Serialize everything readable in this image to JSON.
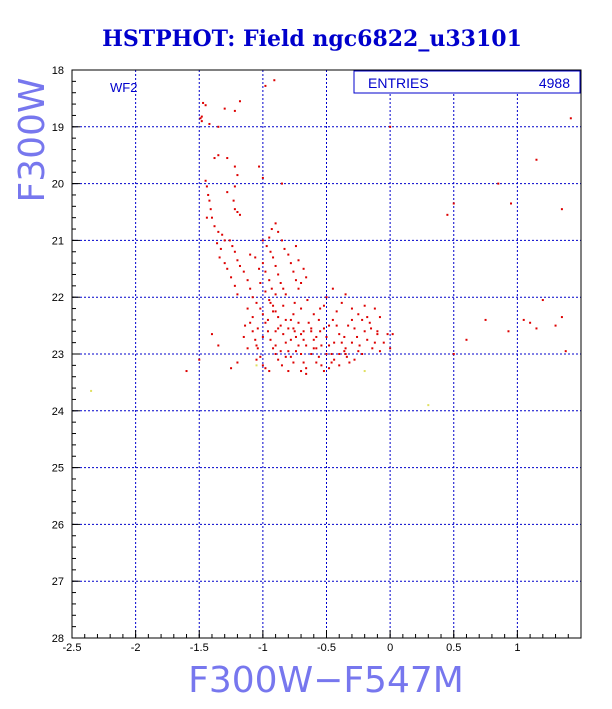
{
  "chart_data": {
    "type": "scatter",
    "title": "HSTPHOT: Field ngc6822_u33101",
    "xlabel": "F300W−F547M",
    "ylabel": "F300W",
    "xlim": [
      -2.5,
      1.5
    ],
    "ylim": [
      28,
      18
    ],
    "y_inverted": true,
    "xticks": [
      -2.5,
      -2,
      -1.5,
      -1,
      -0.5,
      0,
      0.5,
      1
    ],
    "xtick_labels": [
      "-2.5",
      "-2",
      "-1.5",
      "-1",
      "-0.5",
      "0",
      "0.5",
      "1"
    ],
    "yticks": [
      18,
      19,
      20,
      21,
      22,
      23,
      24,
      25,
      26,
      27,
      28
    ],
    "ytick_labels": [
      "18",
      "19",
      "20",
      "21",
      "22",
      "23",
      "24",
      "25",
      "26",
      "27",
      "28"
    ],
    "grid": true,
    "panel_label": "WF2",
    "stats": {
      "label": "ENTRIES",
      "value": "4988"
    },
    "point_color": "#dd0000",
    "faint_color": "#e0e060",
    "grid_color": "#0000cc",
    "frame_color": "#000000",
    "points": [
      [
        -0.91,
        18.18
      ],
      [
        -0.98,
        18.28
      ],
      [
        -1.47,
        18.58
      ],
      [
        -1.45,
        18.62
      ],
      [
        -1.48,
        18.82
      ],
      [
        -1.49,
        18.85
      ],
      [
        -1.42,
        18.95
      ],
      [
        -1.3,
        18.68
      ],
      [
        -1.22,
        18.72
      ],
      [
        -1.18,
        18.55
      ],
      [
        -1.35,
        19.0
      ],
      [
        -1.48,
        18.9
      ],
      [
        -1.38,
        19.55
      ],
      [
        -1.35,
        19.5
      ],
      [
        -1.28,
        19.55
      ],
      [
        -1.22,
        19.7
      ],
      [
        -1.2,
        19.85
      ],
      [
        -1.22,
        20.05
      ],
      [
        -1.28,
        20.15
      ],
      [
        -1.45,
        19.95
      ],
      [
        -1.44,
        20.05
      ],
      [
        -1.43,
        20.2
      ],
      [
        -1.42,
        20.3
      ],
      [
        -1.41,
        20.45
      ],
      [
        -1.4,
        20.6
      ],
      [
        -1.44,
        20.6
      ],
      [
        -1.2,
        20.5
      ],
      [
        -1.18,
        20.55
      ],
      [
        -1.03,
        19.7
      ],
      [
        -1.0,
        19.9
      ],
      [
        -1.23,
        20.3
      ],
      [
        -1.22,
        20.45
      ],
      [
        -0.85,
        20.0
      ],
      [
        -1.38,
        20.75
      ],
      [
        -1.35,
        20.85
      ],
      [
        -1.32,
        20.9
      ],
      [
        -1.3,
        21.0
      ],
      [
        -1.36,
        21.05
      ],
      [
        -1.33,
        21.15
      ],
      [
        -1.34,
        21.3
      ],
      [
        -1.3,
        21.4
      ],
      [
        -1.28,
        21.5
      ],
      [
        -1.25,
        21.65
      ],
      [
        -1.22,
        21.8
      ],
      [
        -1.2,
        21.95
      ],
      [
        -1.26,
        21.0
      ],
      [
        -1.24,
        21.1
      ],
      [
        -1.22,
        21.2
      ],
      [
        -1.2,
        21.35
      ],
      [
        -1.18,
        21.45
      ],
      [
        -1.15,
        21.55
      ],
      [
        -1.12,
        21.7
      ],
      [
        -1.1,
        21.85
      ],
      [
        -1.08,
        22.0
      ],
      [
        -1.05,
        22.1
      ],
      [
        -1.02,
        22.2
      ],
      [
        -1.0,
        22.3
      ],
      [
        -1.1,
        21.25
      ],
      [
        -1.06,
        21.3
      ],
      [
        -1.03,
        21.5
      ],
      [
        -1.0,
        21.4
      ],
      [
        -0.98,
        21.55
      ],
      [
        -0.95,
        21.7
      ],
      [
        -0.93,
        21.85
      ],
      [
        -0.9,
        21.95
      ],
      [
        -0.95,
        22.05
      ],
      [
        -0.92,
        22.15
      ],
      [
        -0.9,
        22.25
      ],
      [
        -0.88,
        22.35
      ],
      [
        -1.0,
        21.0
      ],
      [
        -0.97,
        21.1
      ],
      [
        -0.94,
        21.2
      ],
      [
        -0.92,
        21.3
      ],
      [
        -0.9,
        21.45
      ],
      [
        -0.88,
        21.6
      ],
      [
        -0.86,
        21.75
      ],
      [
        -0.84,
        21.85
      ],
      [
        -0.82,
        21.95
      ],
      [
        -0.95,
        20.95
      ],
      [
        -0.93,
        20.8
      ],
      [
        -0.9,
        20.7
      ],
      [
        -0.88,
        20.85
      ],
      [
        -0.85,
        21.0
      ],
      [
        -0.83,
        21.15
      ],
      [
        -0.8,
        21.25
      ],
      [
        -0.78,
        21.4
      ],
      [
        -0.76,
        21.55
      ],
      [
        -0.74,
        21.7
      ],
      [
        -0.72,
        21.85
      ],
      [
        -0.7,
        21.75
      ],
      [
        -0.72,
        21.35
      ],
      [
        -0.74,
        21.1
      ],
      [
        -0.68,
        21.5
      ],
      [
        -0.66,
        21.65
      ],
      [
        -1.1,
        22.45
      ],
      [
        -1.08,
        22.6
      ],
      [
        -1.06,
        22.75
      ],
      [
        -1.04,
        22.9
      ],
      [
        -1.02,
        23.05
      ],
      [
        -1.0,
        23.2
      ],
      [
        -0.98,
        23.25
      ],
      [
        -1.12,
        22.9
      ],
      [
        -1.15,
        22.7
      ],
      [
        -1.14,
        22.5
      ],
      [
        -0.98,
        22.45
      ],
      [
        -0.96,
        22.6
      ],
      [
        -0.94,
        22.75
      ],
      [
        -0.92,
        22.9
      ],
      [
        -0.9,
        23.0
      ],
      [
        -0.88,
        23.1
      ],
      [
        -0.86,
        22.5
      ],
      [
        -0.84,
        22.65
      ],
      [
        -0.82,
        22.8
      ],
      [
        -0.8,
        22.95
      ],
      [
        -0.78,
        23.05
      ],
      [
        -0.76,
        23.15
      ],
      [
        -0.78,
        22.4
      ],
      [
        -0.76,
        22.55
      ],
      [
        -0.74,
        22.7
      ],
      [
        -0.72,
        22.85
      ],
      [
        -0.7,
        23.0
      ],
      [
        -0.68,
        23.15
      ],
      [
        -0.66,
        23.25
      ],
      [
        -0.64,
        22.45
      ],
      [
        -0.62,
        22.6
      ],
      [
        -0.6,
        22.75
      ],
      [
        -0.58,
        22.9
      ],
      [
        -0.56,
        23.05
      ],
      [
        -0.54,
        23.2
      ],
      [
        -0.52,
        23.3
      ],
      [
        -0.6,
        22.3
      ],
      [
        -0.56,
        22.4
      ],
      [
        -0.52,
        22.55
      ],
      [
        -0.5,
        22.7
      ],
      [
        -0.48,
        22.85
      ],
      [
        -0.46,
        23.0
      ],
      [
        -0.44,
        23.1
      ],
      [
        -0.42,
        22.5
      ],
      [
        -0.4,
        22.65
      ],
      [
        -0.38,
        22.8
      ],
      [
        -0.36,
        22.95
      ],
      [
        -0.34,
        23.05
      ],
      [
        -0.32,
        23.15
      ],
      [
        -0.3,
        22.4
      ],
      [
        -0.28,
        22.55
      ],
      [
        -0.26,
        22.7
      ],
      [
        -0.24,
        22.85
      ],
      [
        -0.22,
        23.0
      ],
      [
        -0.2,
        22.6
      ],
      [
        -0.18,
        22.75
      ],
      [
        -0.16,
        22.45
      ],
      [
        -0.14,
        22.9
      ],
      [
        -0.12,
        22.2
      ],
      [
        -0.1,
        22.6
      ],
      [
        -0.08,
        22.95
      ],
      [
        -0.05,
        22.8
      ],
      [
        -0.02,
        22.65
      ],
      [
        -0.38,
        22.1
      ],
      [
        -0.35,
        21.95
      ],
      [
        -0.3,
        22.2
      ],
      [
        -0.25,
        22.3
      ],
      [
        -0.2,
        22.15
      ],
      [
        -0.45,
        21.85
      ],
      [
        -0.5,
        22.0
      ],
      [
        -0.55,
        22.2
      ],
      [
        -0.65,
        22.05
      ],
      [
        -0.7,
        22.2
      ],
      [
        -0.75,
        22.1
      ],
      [
        -0.62,
        23.0
      ],
      [
        -0.58,
        23.15
      ],
      [
        -0.48,
        23.25
      ],
      [
        -0.4,
        23.2
      ],
      [
        -0.35,
        23.0
      ],
      [
        -0.28,
        23.1
      ],
      [
        -0.7,
        23.3
      ],
      [
        -0.66,
        23.35
      ],
      [
        -0.95,
        23.3
      ],
      [
        -0.85,
        23.2
      ],
      [
        -0.8,
        23.3
      ],
      [
        -0.75,
        22.6
      ],
      [
        -0.68,
        22.75
      ],
      [
        -0.92,
        22.25
      ],
      [
        -0.88,
        22.55
      ],
      [
        -0.84,
        22.15
      ],
      [
        -1.05,
        22.85
      ],
      [
        -1.0,
        22.7
      ],
      [
        -1.05,
        23.1
      ],
      [
        -1.2,
        23.15
      ],
      [
        -1.25,
        23.25
      ],
      [
        -1.5,
        23.1
      ],
      [
        -1.6,
        23.3
      ],
      [
        -1.4,
        22.65
      ],
      [
        -1.35,
        22.85
      ],
      [
        -0.6,
        22.9
      ],
      [
        -0.55,
        22.6
      ],
      [
        -0.45,
        22.4
      ],
      [
        -0.42,
        22.25
      ],
      [
        -0.36,
        22.7
      ],
      [
        -0.33,
        22.5
      ],
      [
        0.02,
        22.65
      ],
      [
        0.0,
        22.9
      ],
      [
        0.45,
        20.55
      ],
      [
        0.5,
        20.35
      ],
      [
        0.85,
        20.0
      ],
      [
        0.95,
        20.35
      ],
      [
        1.15,
        19.58
      ],
      [
        1.42,
        18.85
      ],
      [
        1.35,
        20.45
      ],
      [
        1.2,
        22.05
      ],
      [
        1.35,
        22.35
      ],
      [
        1.3,
        22.5
      ],
      [
        1.1,
        22.45
      ],
      [
        1.05,
        22.4
      ],
      [
        1.15,
        22.55
      ],
      [
        0.75,
        22.4
      ],
      [
        0.6,
        22.75
      ],
      [
        0.93,
        22.6
      ],
      [
        0.5,
        23.0
      ],
      [
        1.38,
        22.95
      ],
      [
        0.0,
        19.0
      ],
      [
        -0.08,
        22.35
      ],
      [
        -0.1,
        22.65
      ],
      [
        -0.52,
        22.15
      ],
      [
        -0.48,
        22.5
      ],
      [
        -0.44,
        22.8
      ],
      [
        -0.4,
        23.0
      ],
      [
        -0.35,
        22.9
      ],
      [
        -0.3,
        22.8
      ],
      [
        -0.25,
        22.95
      ],
      [
        -0.22,
        22.4
      ],
      [
        -0.18,
        22.35
      ],
      [
        -0.15,
        22.55
      ],
      [
        -0.12,
        22.8
      ],
      [
        -0.9,
        22.85
      ],
      [
        -0.86,
        22.95
      ],
      [
        -0.82,
        23.05
      ],
      [
        -0.78,
        22.75
      ],
      [
        -0.74,
        22.95
      ],
      [
        -0.7,
        22.65
      ],
      [
        -0.66,
        22.85
      ],
      [
        -0.62,
        22.55
      ],
      [
        -0.58,
        22.7
      ],
      [
        -0.54,
        22.85
      ],
      [
        -0.5,
        23.0
      ],
      [
        -0.46,
        23.15
      ],
      [
        -1.12,
        22.2
      ],
      [
        -1.08,
        22.35
      ],
      [
        -1.04,
        22.55
      ],
      [
        -0.96,
        22.4
      ],
      [
        -0.94,
        22.1
      ],
      [
        -0.98,
        21.9
      ],
      [
        -1.02,
        21.75
      ],
      [
        -0.9,
        22.6
      ],
      [
        -0.82,
        22.4
      ],
      [
        -0.8,
        22.55
      ],
      [
        -0.76,
        22.3
      ],
      [
        -0.72,
        22.45
      ],
      [
        -0.68,
        22.6
      ]
    ],
    "faint_points": [
      [
        -2.35,
        23.65
      ],
      [
        -1.05,
        23.2
      ],
      [
        0.3,
        23.9
      ],
      [
        -0.2,
        23.3
      ]
    ]
  }
}
